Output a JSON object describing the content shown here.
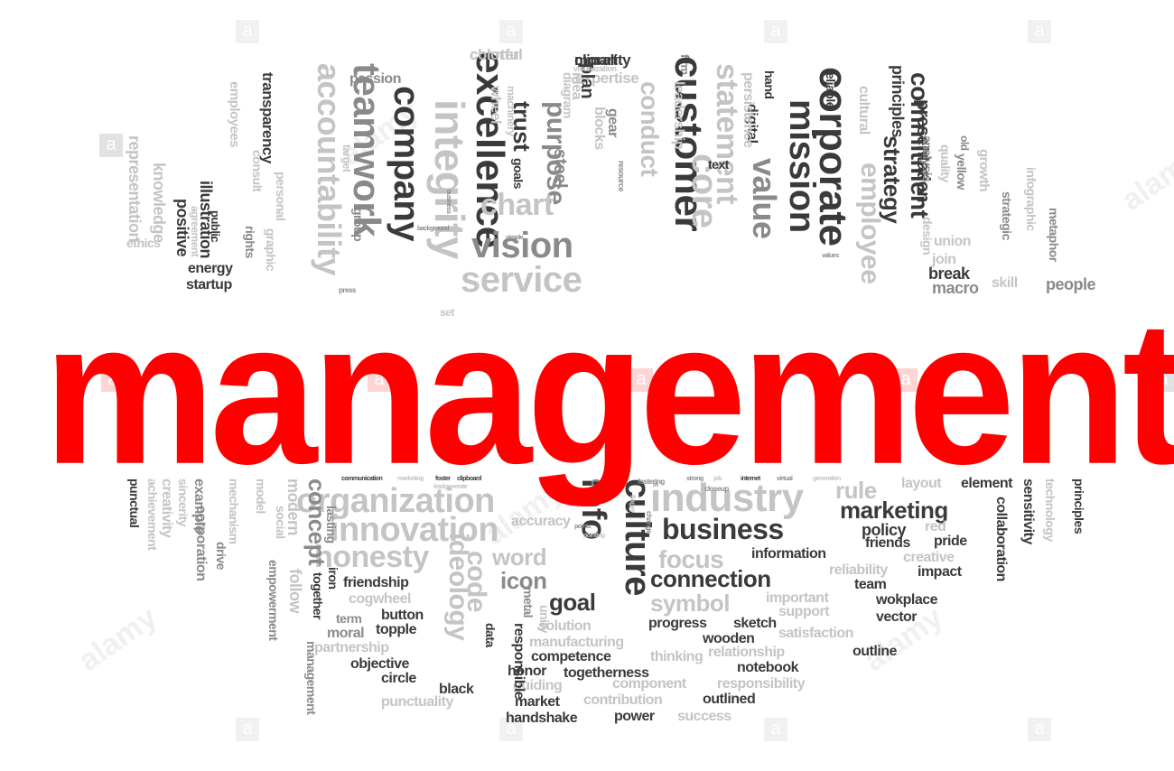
{
  "title": "management",
  "words_upper": [
    "charter",
    "morality",
    "expertise",
    "firm",
    "statement",
    "principles",
    "passion",
    "accountability",
    "teamwork",
    "company",
    "integrity",
    "excellence",
    "purpose",
    "customer",
    "corporate",
    "mission",
    "value",
    "employee",
    "commitment",
    "strategy",
    "presentation",
    "transparency",
    "employees",
    "representation",
    "knowledge",
    "illustration",
    "positive",
    "ethics",
    "energy",
    "startup",
    "graphic",
    "personal",
    "consult",
    "group",
    "target",
    "machinery",
    "wheel",
    "trust",
    "steel",
    "plan",
    "idea",
    "diagram",
    "blocks",
    "gear",
    "conduct",
    "chart",
    "vision",
    "service",
    "core",
    "leadership",
    "digital",
    "text",
    "hand",
    "persistence",
    "reliable",
    "cultural",
    "analysis",
    "quality",
    "yellow",
    "growth",
    "infographic",
    "strategic",
    "join",
    "break",
    "union",
    "design",
    "macro",
    "skill",
    "metaphor",
    "people",
    "press",
    "public",
    "agreement",
    "rights",
    "resource",
    "goals",
    "set",
    "old",
    "values",
    "simple",
    "business",
    "background",
    "visualization",
    "colorful",
    "clipart"
  ],
  "words_lower": [
    "communication",
    "marketing",
    "foster",
    "clipboard",
    "strong",
    "job",
    "internet",
    "virtual",
    "generation",
    "organization",
    "innovation",
    "honesty",
    "industry",
    "rule",
    "layout",
    "element",
    "marketing",
    "business",
    "policy",
    "red",
    "friends",
    "pride",
    "information",
    "focus",
    "connection",
    "creative",
    "impact",
    "reliability",
    "team",
    "symbol",
    "important",
    "wokplace",
    "support",
    "vector",
    "progress",
    "sketch",
    "wooden",
    "satisfaction",
    "outline",
    "relationship",
    "notebook",
    "responsibility",
    "outlined",
    "success",
    "power",
    "handshake",
    "market",
    "contribution",
    "component",
    "guiding",
    "togetherness",
    "honor",
    "thinking",
    "competence",
    "manufacturing",
    "solution",
    "goal",
    "icon",
    "word",
    "code",
    "ideology",
    "info",
    "culture",
    "csr",
    "accuracy",
    "friendship",
    "iron",
    "cogwheel",
    "term",
    "button",
    "moral",
    "topple",
    "partnership",
    "objective",
    "circle",
    "black",
    "punctuality",
    "data",
    "responsible",
    "metal",
    "unity",
    "concept",
    "lasting",
    "together",
    "management",
    "follow",
    "modern",
    "social",
    "model",
    "empowerment",
    "mechanism",
    "drive",
    "example",
    "corporation",
    "sincerity",
    "creativity",
    "achievement",
    "punctual",
    "collaboration",
    "sensitivity",
    "technology",
    "principles",
    "fostering",
    "closeup",
    "finger",
    "change",
    "leadgenerate",
    "points",
    "pointing"
  ],
  "watermark": {
    "letter": "a",
    "brand": "alamy"
  },
  "colors": {
    "accent": "#ff0000",
    "dark": "#3a3a3a",
    "mid": "#8a8a8a",
    "light": "#c4c4c4",
    "background": "#ffffff"
  }
}
